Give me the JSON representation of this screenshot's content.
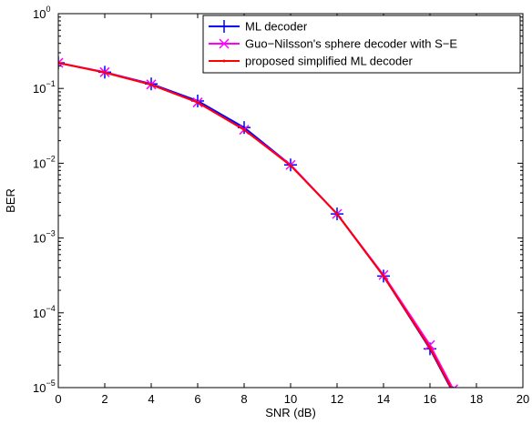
{
  "chart_data": {
    "type": "line",
    "xlabel": "SNR (dB)",
    "ylabel": "BER",
    "xlim": [
      0,
      20
    ],
    "ylim": [
      1e-05,
      1
    ],
    "yscale": "log",
    "grid": false,
    "legend_position": "top-right",
    "x_ticks": [
      0,
      2,
      4,
      6,
      8,
      10,
      12,
      14,
      16,
      18,
      20
    ],
    "y_ticks": [
      {
        "value": 1,
        "base": "10",
        "exp": "0"
      },
      {
        "value": 0.1,
        "base": "10",
        "exp": "−1"
      },
      {
        "value": 0.01,
        "base": "10",
        "exp": "−2"
      },
      {
        "value": 0.001,
        "base": "10",
        "exp": "−3"
      },
      {
        "value": 0.0001,
        "base": "10",
        "exp": "−4"
      },
      {
        "value": 1e-05,
        "base": "10",
        "exp": "−5"
      }
    ],
    "series": [
      {
        "name": "ML decoder",
        "color": "#0000ff",
        "marker": "plus",
        "x": [
          0,
          2,
          4,
          6,
          8,
          10,
          12,
          14,
          16,
          17
        ],
        "y": [
          0.22,
          0.165,
          0.115,
          0.068,
          0.03,
          0.0095,
          0.0021,
          0.00031,
          3.3e-05,
          8.5e-06
        ]
      },
      {
        "name": "Guo−Nilsson's sphere decoder with S−E",
        "color": "#ff00ff",
        "marker": "x",
        "x": [
          0,
          2,
          4,
          6,
          8,
          10,
          12,
          14,
          16,
          17
        ],
        "y": [
          0.22,
          0.165,
          0.113,
          0.065,
          0.028,
          0.0095,
          0.0021,
          0.00032,
          3.7e-05,
          9.5e-06
        ]
      },
      {
        "name": "proposed simplified ML decoder",
        "color": "#ff0000",
        "marker": "dot",
        "x": [
          0,
          2,
          4,
          6,
          8,
          10,
          12,
          14,
          16,
          17
        ],
        "y": [
          0.22,
          0.163,
          0.112,
          0.065,
          0.028,
          0.0093,
          0.0021,
          0.00031,
          3.4e-05,
          8.8e-06
        ]
      }
    ]
  }
}
